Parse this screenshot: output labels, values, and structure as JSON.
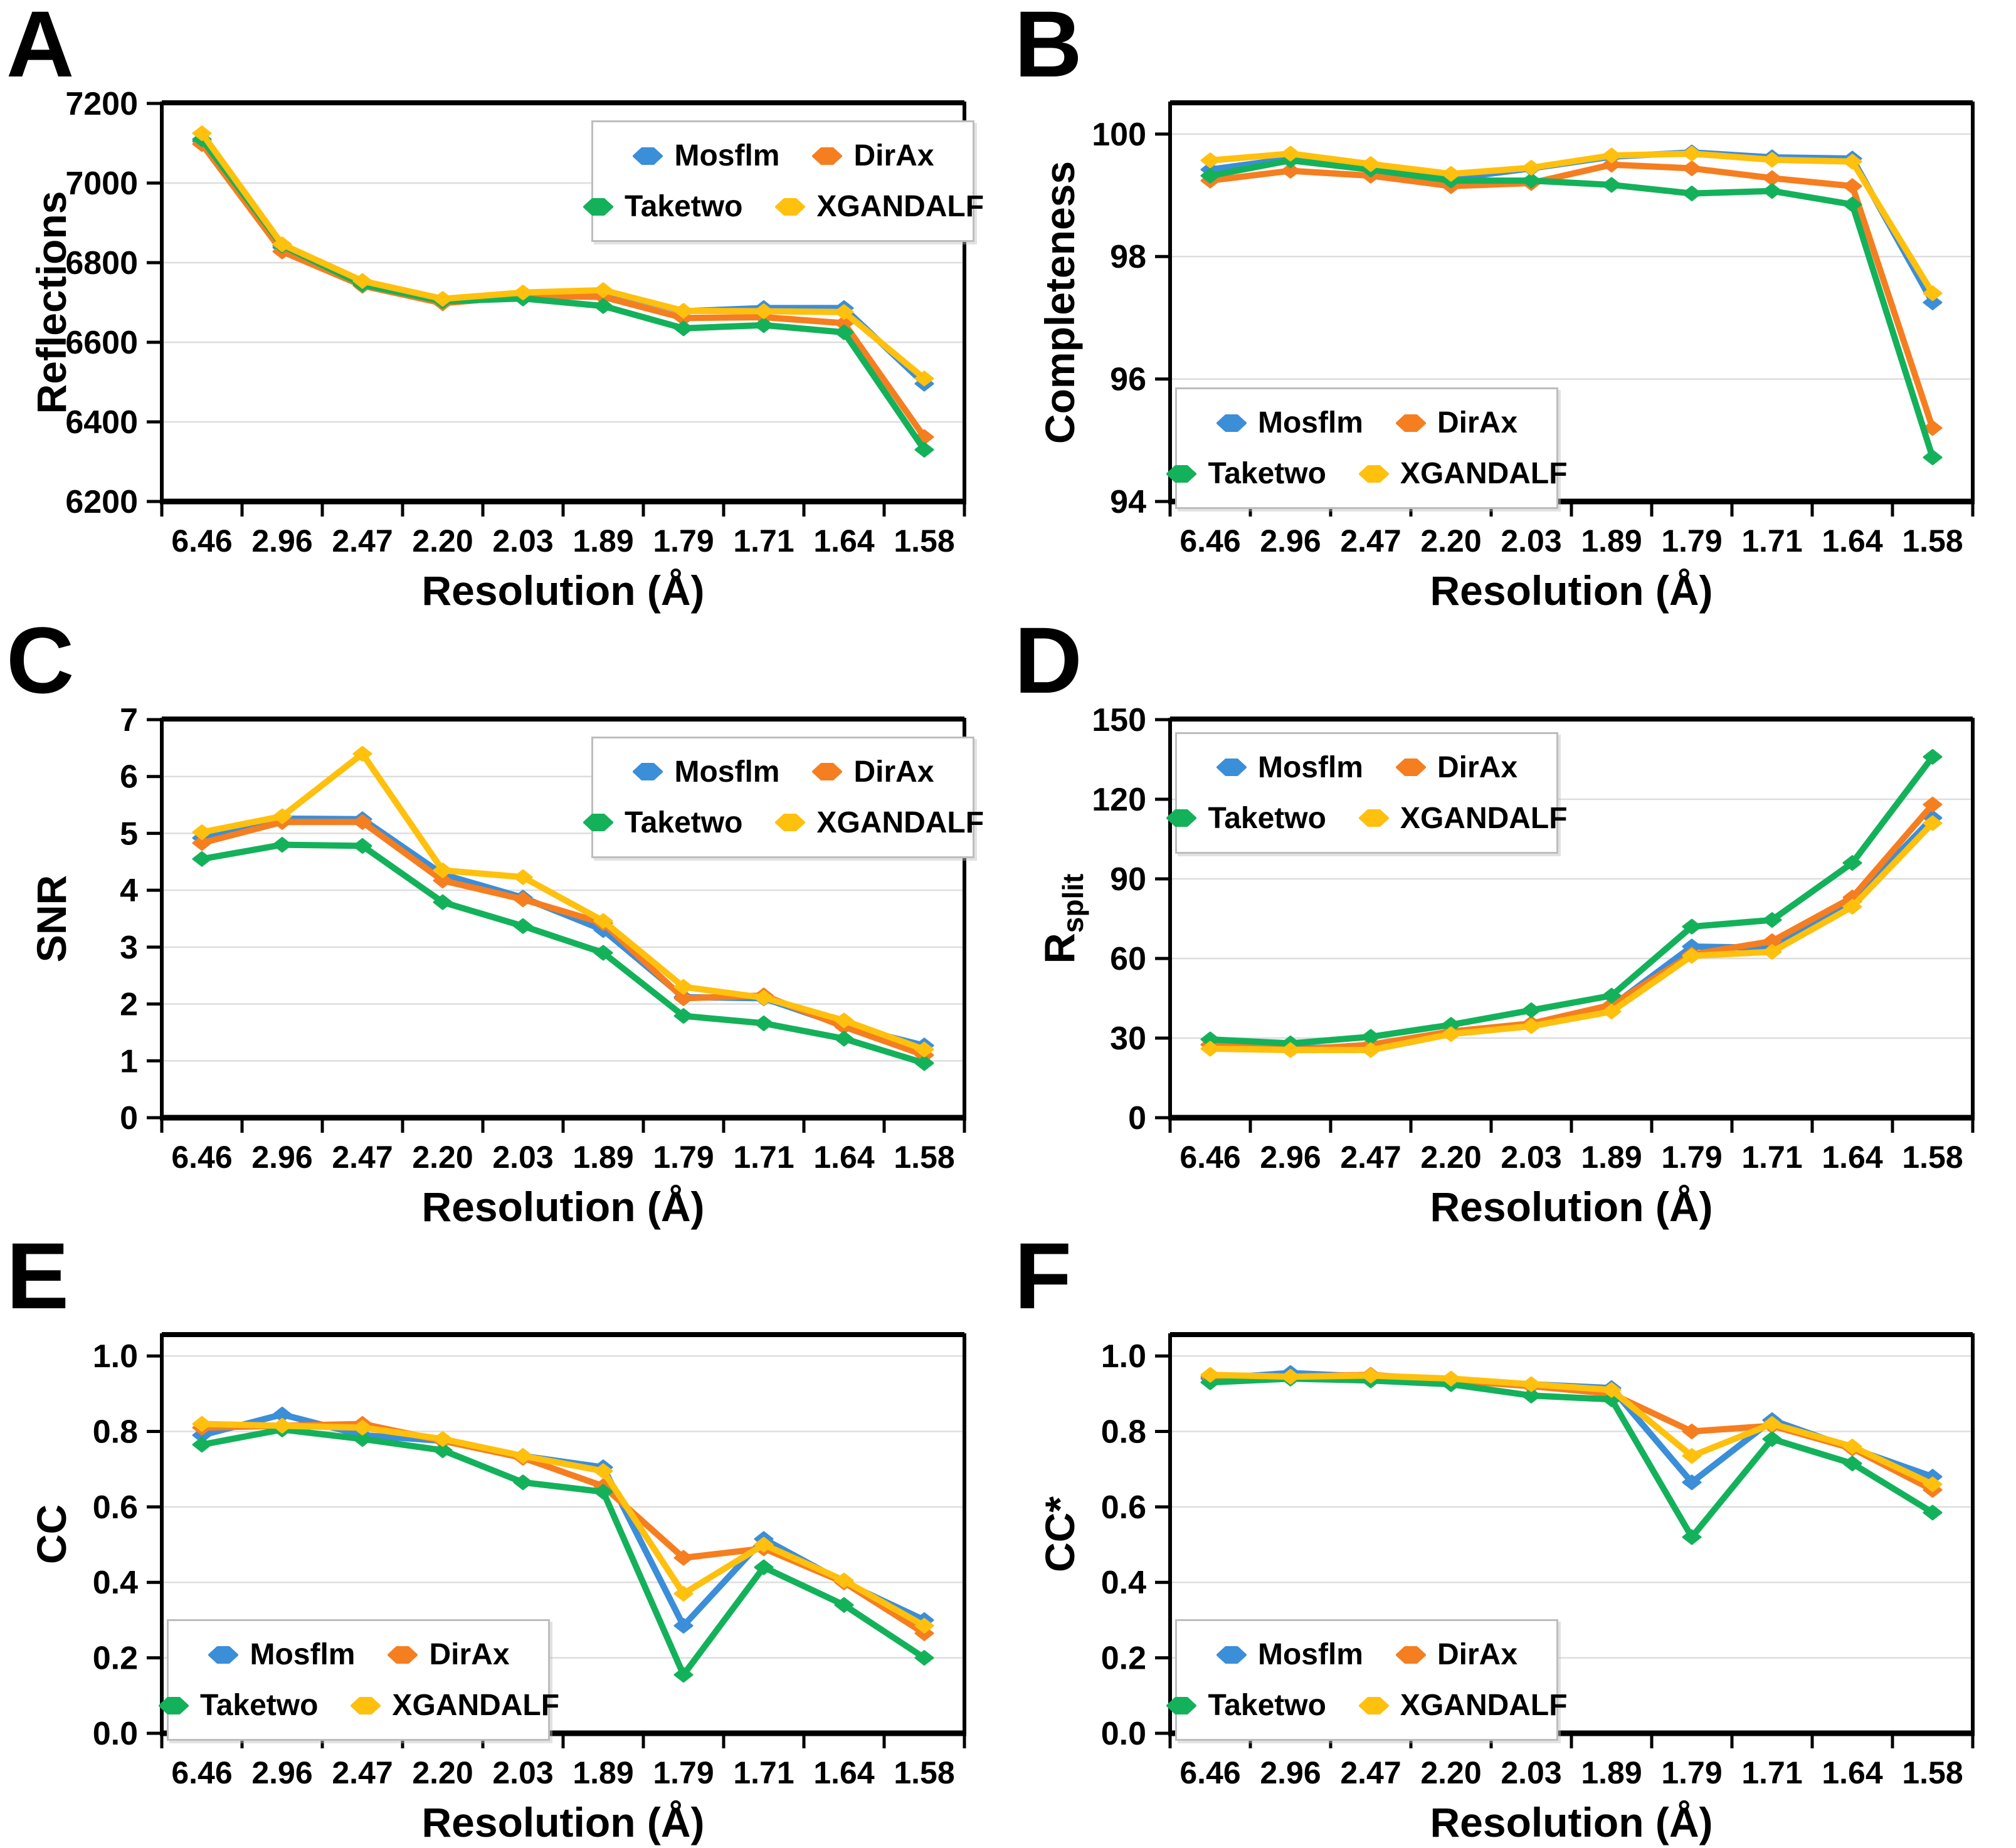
{
  "figure": {
    "x_label": "Resolution (Å)",
    "categories": [
      "6.46",
      "2.96",
      "2.47",
      "2.20",
      "2.03",
      "1.89",
      "1.79",
      "1.71",
      "1.64",
      "1.58"
    ],
    "legend_entries": [
      "Mosflm",
      "DirAx",
      "Taketwo",
      "XGANDALF"
    ],
    "colors": {
      "Mosflm": "#3B8ED8",
      "DirAx": "#F57E20",
      "Taketwo": "#14B15B",
      "XGANDALF": "#FFC00E"
    },
    "grid_color": "#DDDDDD",
    "axis_color": "#000000"
  },
  "chart_data": [
    {
      "panel_label": "A",
      "type": "line",
      "ylabel_main": "Reflections",
      "ylabel_sub": "",
      "xlabel": "Resolution (Å)",
      "ylim": [
        6200,
        7200
      ],
      "ylim_top_pad": 0,
      "y_ticks": [
        6200,
        6400,
        6600,
        6800,
        7000,
        7200
      ],
      "y_tick_labels": [
        "6200",
        "6400",
        "6600",
        "6800",
        "7000",
        "7200"
      ],
      "legend_position": "top-right",
      "categories": [
        "6.46",
        "2.96",
        "2.47",
        "2.20",
        "2.03",
        "1.89",
        "1.79",
        "1.71",
        "1.64",
        "1.58"
      ],
      "series": [
        {
          "name": "Mosflm",
          "values": [
            7105,
            6838,
            6750,
            6705,
            6724,
            6730,
            6678,
            6686,
            6686,
            6496
          ]
        },
        {
          "name": "DirAx",
          "values": [
            7098,
            6828,
            6742,
            6698,
            6716,
            6714,
            6661,
            6663,
            6648,
            6362
          ]
        },
        {
          "name": "Taketwo",
          "values": [
            7110,
            6843,
            6745,
            6703,
            6710,
            6691,
            6635,
            6643,
            6625,
            6330
          ]
        },
        {
          "name": "XGANDALF",
          "values": [
            7125,
            6846,
            6754,
            6709,
            6725,
            6731,
            6679,
            6678,
            6676,
            6509
          ]
        }
      ]
    },
    {
      "panel_label": "B",
      "type": "line",
      "ylabel_main": "Completeness",
      "ylabel_sub": "",
      "xlabel": "Resolution (Å)",
      "ylim": [
        94,
        100
      ],
      "ylim_top_pad": 0.5,
      "y_ticks": [
        94,
        96,
        98,
        100
      ],
      "y_tick_labels": [
        "94",
        "96",
        "98",
        "100"
      ],
      "legend_position": "bottom-left",
      "categories": [
        "6.46",
        "2.96",
        "2.47",
        "2.20",
        "2.03",
        "1.89",
        "1.79",
        "1.71",
        "1.64",
        "1.58"
      ],
      "series": [
        {
          "name": "Mosflm",
          "values": [
            99.42,
            99.6,
            99.45,
            99.27,
            99.44,
            99.63,
            99.7,
            99.62,
            99.6,
            97.25
          ]
        },
        {
          "name": "DirAx",
          "values": [
            99.24,
            99.4,
            99.32,
            99.15,
            99.2,
            99.5,
            99.44,
            99.28,
            99.15,
            95.2
          ]
        },
        {
          "name": "Taketwo",
          "values": [
            99.32,
            99.57,
            99.42,
            99.24,
            99.24,
            99.17,
            99.03,
            99.07,
            98.85,
            94.72
          ]
        },
        {
          "name": "XGANDALF",
          "values": [
            99.57,
            99.68,
            99.51,
            99.35,
            99.45,
            99.65,
            99.68,
            99.58,
            99.55,
            97.4
          ]
        }
      ]
    },
    {
      "panel_label": "C",
      "type": "line",
      "ylabel_main": "SNR",
      "ylabel_sub": "",
      "xlabel": "Resolution (Å)",
      "ylim": [
        0,
        7
      ],
      "ylim_top_pad": 0,
      "y_ticks": [
        0,
        1,
        2,
        3,
        4,
        5,
        6,
        7
      ],
      "y_tick_labels": [
        "0",
        "1",
        "2",
        "3",
        "4",
        "5",
        "6",
        "7"
      ],
      "legend_position": "top-right",
      "categories": [
        "6.46",
        "2.96",
        "2.47",
        "2.20",
        "2.03",
        "1.89",
        "1.79",
        "1.71",
        "1.64",
        "1.58"
      ],
      "series": [
        {
          "name": "Mosflm",
          "values": [
            4.92,
            5.26,
            5.25,
            4.28,
            3.87,
            3.3,
            2.12,
            2.1,
            1.62,
            1.27
          ]
        },
        {
          "name": "DirAx",
          "values": [
            4.83,
            5.2,
            5.2,
            4.17,
            3.84,
            3.42,
            2.1,
            2.15,
            1.6,
            1.1
          ]
        },
        {
          "name": "Taketwo",
          "values": [
            4.55,
            4.8,
            4.78,
            3.79,
            3.37,
            2.9,
            1.79,
            1.66,
            1.39,
            0.96
          ]
        },
        {
          "name": "XGANDALF",
          "values": [
            5.02,
            5.3,
            6.4,
            4.35,
            4.23,
            3.46,
            2.3,
            2.11,
            1.71,
            1.2
          ]
        }
      ]
    },
    {
      "panel_label": "D",
      "type": "line",
      "ylabel_main": "R",
      "ylabel_sub": "split",
      "xlabel": "Resolution (Å)",
      "ylim": [
        0,
        150
      ],
      "ylim_top_pad": 0,
      "y_ticks": [
        0,
        30,
        60,
        90,
        120,
        150
      ],
      "y_tick_labels": [
        "0",
        "30",
        "60",
        "90",
        "120",
        "150"
      ],
      "legend_position": "top-left",
      "categories": [
        "6.46",
        "2.96",
        "2.47",
        "2.20",
        "2.03",
        "1.89",
        "1.79",
        "1.71",
        "1.64",
        "1.58"
      ],
      "series": [
        {
          "name": "Mosflm",
          "values": [
            27.5,
            26.0,
            27.0,
            32.0,
            35.0,
            42.0,
            64.5,
            64.0,
            81.5,
            113.0
          ]
        },
        {
          "name": "DirAx",
          "values": [
            27.5,
            25.5,
            27.5,
            32.5,
            35.5,
            42.5,
            61.5,
            66.5,
            83.0,
            118.0
          ]
        },
        {
          "name": "Taketwo",
          "values": [
            29.5,
            28.0,
            30.5,
            35.0,
            40.5,
            46.0,
            72.0,
            74.5,
            96.0,
            136.0
          ]
        },
        {
          "name": "XGANDALF",
          "values": [
            26.0,
            25.5,
            25.5,
            31.5,
            34.5,
            40.0,
            61.0,
            62.5,
            79.5,
            111.0
          ]
        }
      ]
    },
    {
      "panel_label": "E",
      "type": "line",
      "ylabel_main": "CC",
      "ylabel_sub": "",
      "xlabel": "Resolution (Å)",
      "ylim": [
        0,
        1.0
      ],
      "ylim_top_pad": 0.055,
      "y_ticks": [
        0,
        0.2,
        0.4,
        0.6,
        0.8,
        1.0
      ],
      "y_tick_labels": [
        "0.0",
        "0.2",
        "0.4",
        "0.6",
        "0.8",
        "1.0"
      ],
      "legend_position": "bottom-left",
      "categories": [
        "6.46",
        "2.96",
        "2.47",
        "2.20",
        "2.03",
        "1.89",
        "1.79",
        "1.71",
        "1.64",
        "1.58"
      ],
      "series": [
        {
          "name": "Mosflm",
          "values": [
            0.79,
            0.845,
            0.79,
            0.775,
            0.735,
            0.705,
            0.285,
            0.515,
            0.4,
            0.3
          ]
        },
        {
          "name": "DirAx",
          "values": [
            0.81,
            0.815,
            0.82,
            0.775,
            0.73,
            0.655,
            0.465,
            0.49,
            0.4,
            0.265
          ]
        },
        {
          "name": "Taketwo",
          "values": [
            0.765,
            0.805,
            0.78,
            0.75,
            0.665,
            0.64,
            0.155,
            0.44,
            0.34,
            0.2
          ]
        },
        {
          "name": "XGANDALF",
          "values": [
            0.82,
            0.815,
            0.81,
            0.78,
            0.735,
            0.695,
            0.37,
            0.5,
            0.405,
            0.285
          ]
        }
      ]
    },
    {
      "panel_label": "F",
      "type": "line",
      "ylabel_main": "CC*",
      "ylabel_sub": "",
      "xlabel": "Resolution (Å)",
      "ylim": [
        0,
        1.0
      ],
      "ylim_top_pad": 0.055,
      "y_ticks": [
        0,
        0.2,
        0.4,
        0.6,
        0.8,
        1.0
      ],
      "y_tick_labels": [
        "0.0",
        "0.2",
        "0.4",
        "0.6",
        "0.8",
        "1.0"
      ],
      "legend_position": "bottom-left",
      "categories": [
        "6.46",
        "2.96",
        "2.47",
        "2.20",
        "2.03",
        "1.89",
        "1.79",
        "1.71",
        "1.64",
        "1.58"
      ],
      "series": [
        {
          "name": "Mosflm",
          "values": [
            0.94,
            0.955,
            0.945,
            0.935,
            0.925,
            0.915,
            0.665,
            0.83,
            0.755,
            0.68
          ]
        },
        {
          "name": "DirAx",
          "values": [
            0.945,
            0.945,
            0.95,
            0.935,
            0.92,
            0.9,
            0.8,
            0.815,
            0.755,
            0.645
          ]
        },
        {
          "name": "Taketwo",
          "values": [
            0.93,
            0.94,
            0.935,
            0.925,
            0.895,
            0.885,
            0.52,
            0.78,
            0.715,
            0.585
          ]
        },
        {
          "name": "XGANDALF",
          "values": [
            0.95,
            0.945,
            0.948,
            0.94,
            0.925,
            0.91,
            0.735,
            0.82,
            0.76,
            0.66
          ]
        }
      ]
    }
  ]
}
